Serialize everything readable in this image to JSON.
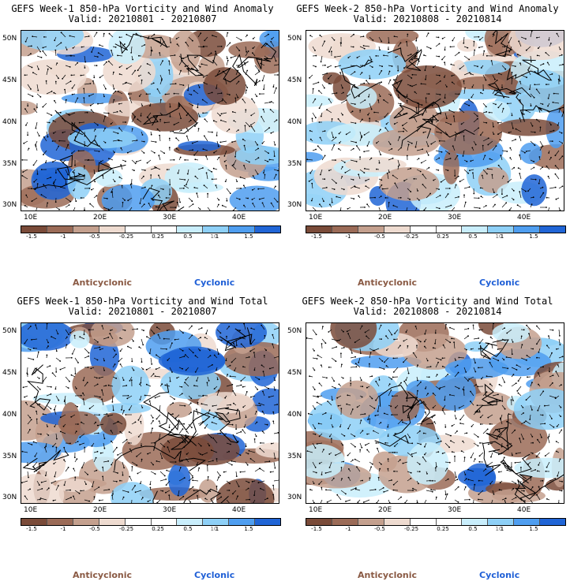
{
  "panels": [
    {
      "title_line1": "GEFS Week-1 850-hPa Vorticity and Wind Anomaly",
      "title_line2": "Valid: 20210801 - 20210807"
    },
    {
      "title_line1": "GEFS Week-2 850-hPa Vorticity and Wind Anomaly",
      "title_line2": "Valid: 20210808 - 20210814"
    },
    {
      "title_line1": "GEFS Week-1 850-hPa Vorticity and Wind Total",
      "title_line2": "Valid: 20210801 - 20210807"
    },
    {
      "title_line1": "GEFS Week-2 850-hPa Vorticity and Wind Total",
      "title_line2": "Valid: 20210808 - 20210814"
    }
  ],
  "lat_labels": [
    "50N",
    "45N",
    "40N",
    "35N",
    "30N"
  ],
  "lon_labels": [
    "10E",
    "20E",
    "30E",
    "40E"
  ],
  "colorbar": {
    "colors": [
      "#7a4b39",
      "#9b6b57",
      "#c4a08e",
      "#eedbd0",
      "#ffffff",
      "#ffffff",
      "#c9eefc",
      "#8ed0f7",
      "#4f9ef0",
      "#2065d6"
    ],
    "labels": [
      "-1.5",
      "-1",
      "-0.5",
      "-0.25",
      "0.25",
      "0.5",
      "1",
      "1.5"
    ],
    "scale_note": "10"
  },
  "legend": {
    "anticyclonic": "Anticyclonic",
    "cyclonic": "Cyclonic"
  }
}
